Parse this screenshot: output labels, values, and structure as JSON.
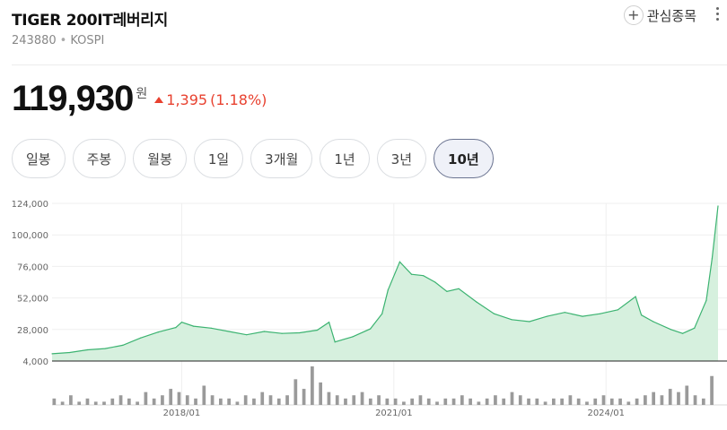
{
  "header": {
    "name": "TIGER 200IT레버리지",
    "code": "243880",
    "market": "KOSPI",
    "watch_label": "관심종목",
    "watch_icon": "plus-icon",
    "more_icon": "more-vertical-icon"
  },
  "quote": {
    "price": "119,930",
    "unit": "원",
    "change": "1,395",
    "change_pct": "(1.18%)",
    "direction": "up",
    "up_color": "#e8412f"
  },
  "periods": [
    {
      "label": "일봉",
      "active": false
    },
    {
      "label": "주봉",
      "active": false
    },
    {
      "label": "월봉",
      "active": false
    },
    {
      "label": "1일",
      "active": false
    },
    {
      "label": "3개월",
      "active": false
    },
    {
      "label": "1년",
      "active": false
    },
    {
      "label": "3년",
      "active": false
    },
    {
      "label": "10년",
      "active": true
    }
  ],
  "chart_data": {
    "type": "area",
    "line_color": "#3cb371",
    "fill_color": "#d6f0de",
    "volume_color": "#9a9a9a",
    "grid": true,
    "ylim": [
      4000,
      124000
    ],
    "y_ticks": [
      "124,000",
      "100,000",
      "76,000",
      "52,000",
      "28,000",
      "4,000"
    ],
    "y_tick_values": [
      124000,
      100000,
      76000,
      52000,
      28000,
      4000
    ],
    "x_ticks": [
      "2018/01",
      "2021/01",
      "2024/01"
    ],
    "x_tick_values": [
      "2018-01",
      "2021-01",
      "2024-01"
    ],
    "x_range": [
      "2016-03",
      "2025-08"
    ],
    "series": [
      {
        "x": [
          "2016-03",
          "2016-06",
          "2016-09",
          "2016-12",
          "2017-03",
          "2017-06",
          "2017-09",
          "2017-12",
          "2018-01",
          "2018-03",
          "2018-06",
          "2018-09",
          "2018-12",
          "2019-03",
          "2019-06",
          "2019-09",
          "2019-12",
          "2020-02",
          "2020-03",
          "2020-06",
          "2020-09",
          "2020-11",
          "2020-12",
          "2021-02",
          "2021-04",
          "2021-06",
          "2021-08",
          "2021-10",
          "2021-12",
          "2022-03",
          "2022-06",
          "2022-09",
          "2022-12",
          "2023-03",
          "2023-06",
          "2023-09",
          "2023-12",
          "2024-03",
          "2024-06",
          "2024-07",
          "2024-09",
          "2024-12",
          "2025-02",
          "2025-04",
          "2025-06",
          "2025-07",
          "2025-08"
        ],
        "y": [
          9500,
          10500,
          12500,
          13500,
          16000,
          21500,
          26000,
          29500,
          33500,
          30500,
          29000,
          26500,
          24000,
          26500,
          25000,
          25500,
          27500,
          33500,
          18500,
          22500,
          28500,
          40000,
          58000,
          79500,
          70000,
          69000,
          64000,
          57000,
          59000,
          49000,
          40000,
          35500,
          34000,
          38000,
          41000,
          38000,
          40000,
          43000,
          53000,
          39000,
          34000,
          28000,
          25000,
          29000,
          50000,
          82000,
          122000
        ]
      }
    ],
    "volume": [
      2,
      1,
      3,
      1,
      2,
      1,
      1,
      2,
      3,
      2,
      1,
      4,
      2,
      3,
      5,
      4,
      3,
      2,
      6,
      3,
      2,
      2,
      1,
      3,
      2,
      4,
      3,
      2,
      3,
      8,
      5,
      12,
      7,
      4,
      3,
      2,
      3,
      4,
      2,
      3,
      2,
      2,
      1,
      2,
      3,
      2,
      1,
      2,
      2,
      3,
      2,
      1,
      2,
      3,
      2,
      4,
      3,
      2,
      2,
      1,
      2,
      2,
      3,
      2,
      1,
      2,
      3,
      2,
      2,
      1,
      2,
      3,
      4,
      3,
      5,
      4,
      6,
      3,
      2,
      9
    ]
  }
}
